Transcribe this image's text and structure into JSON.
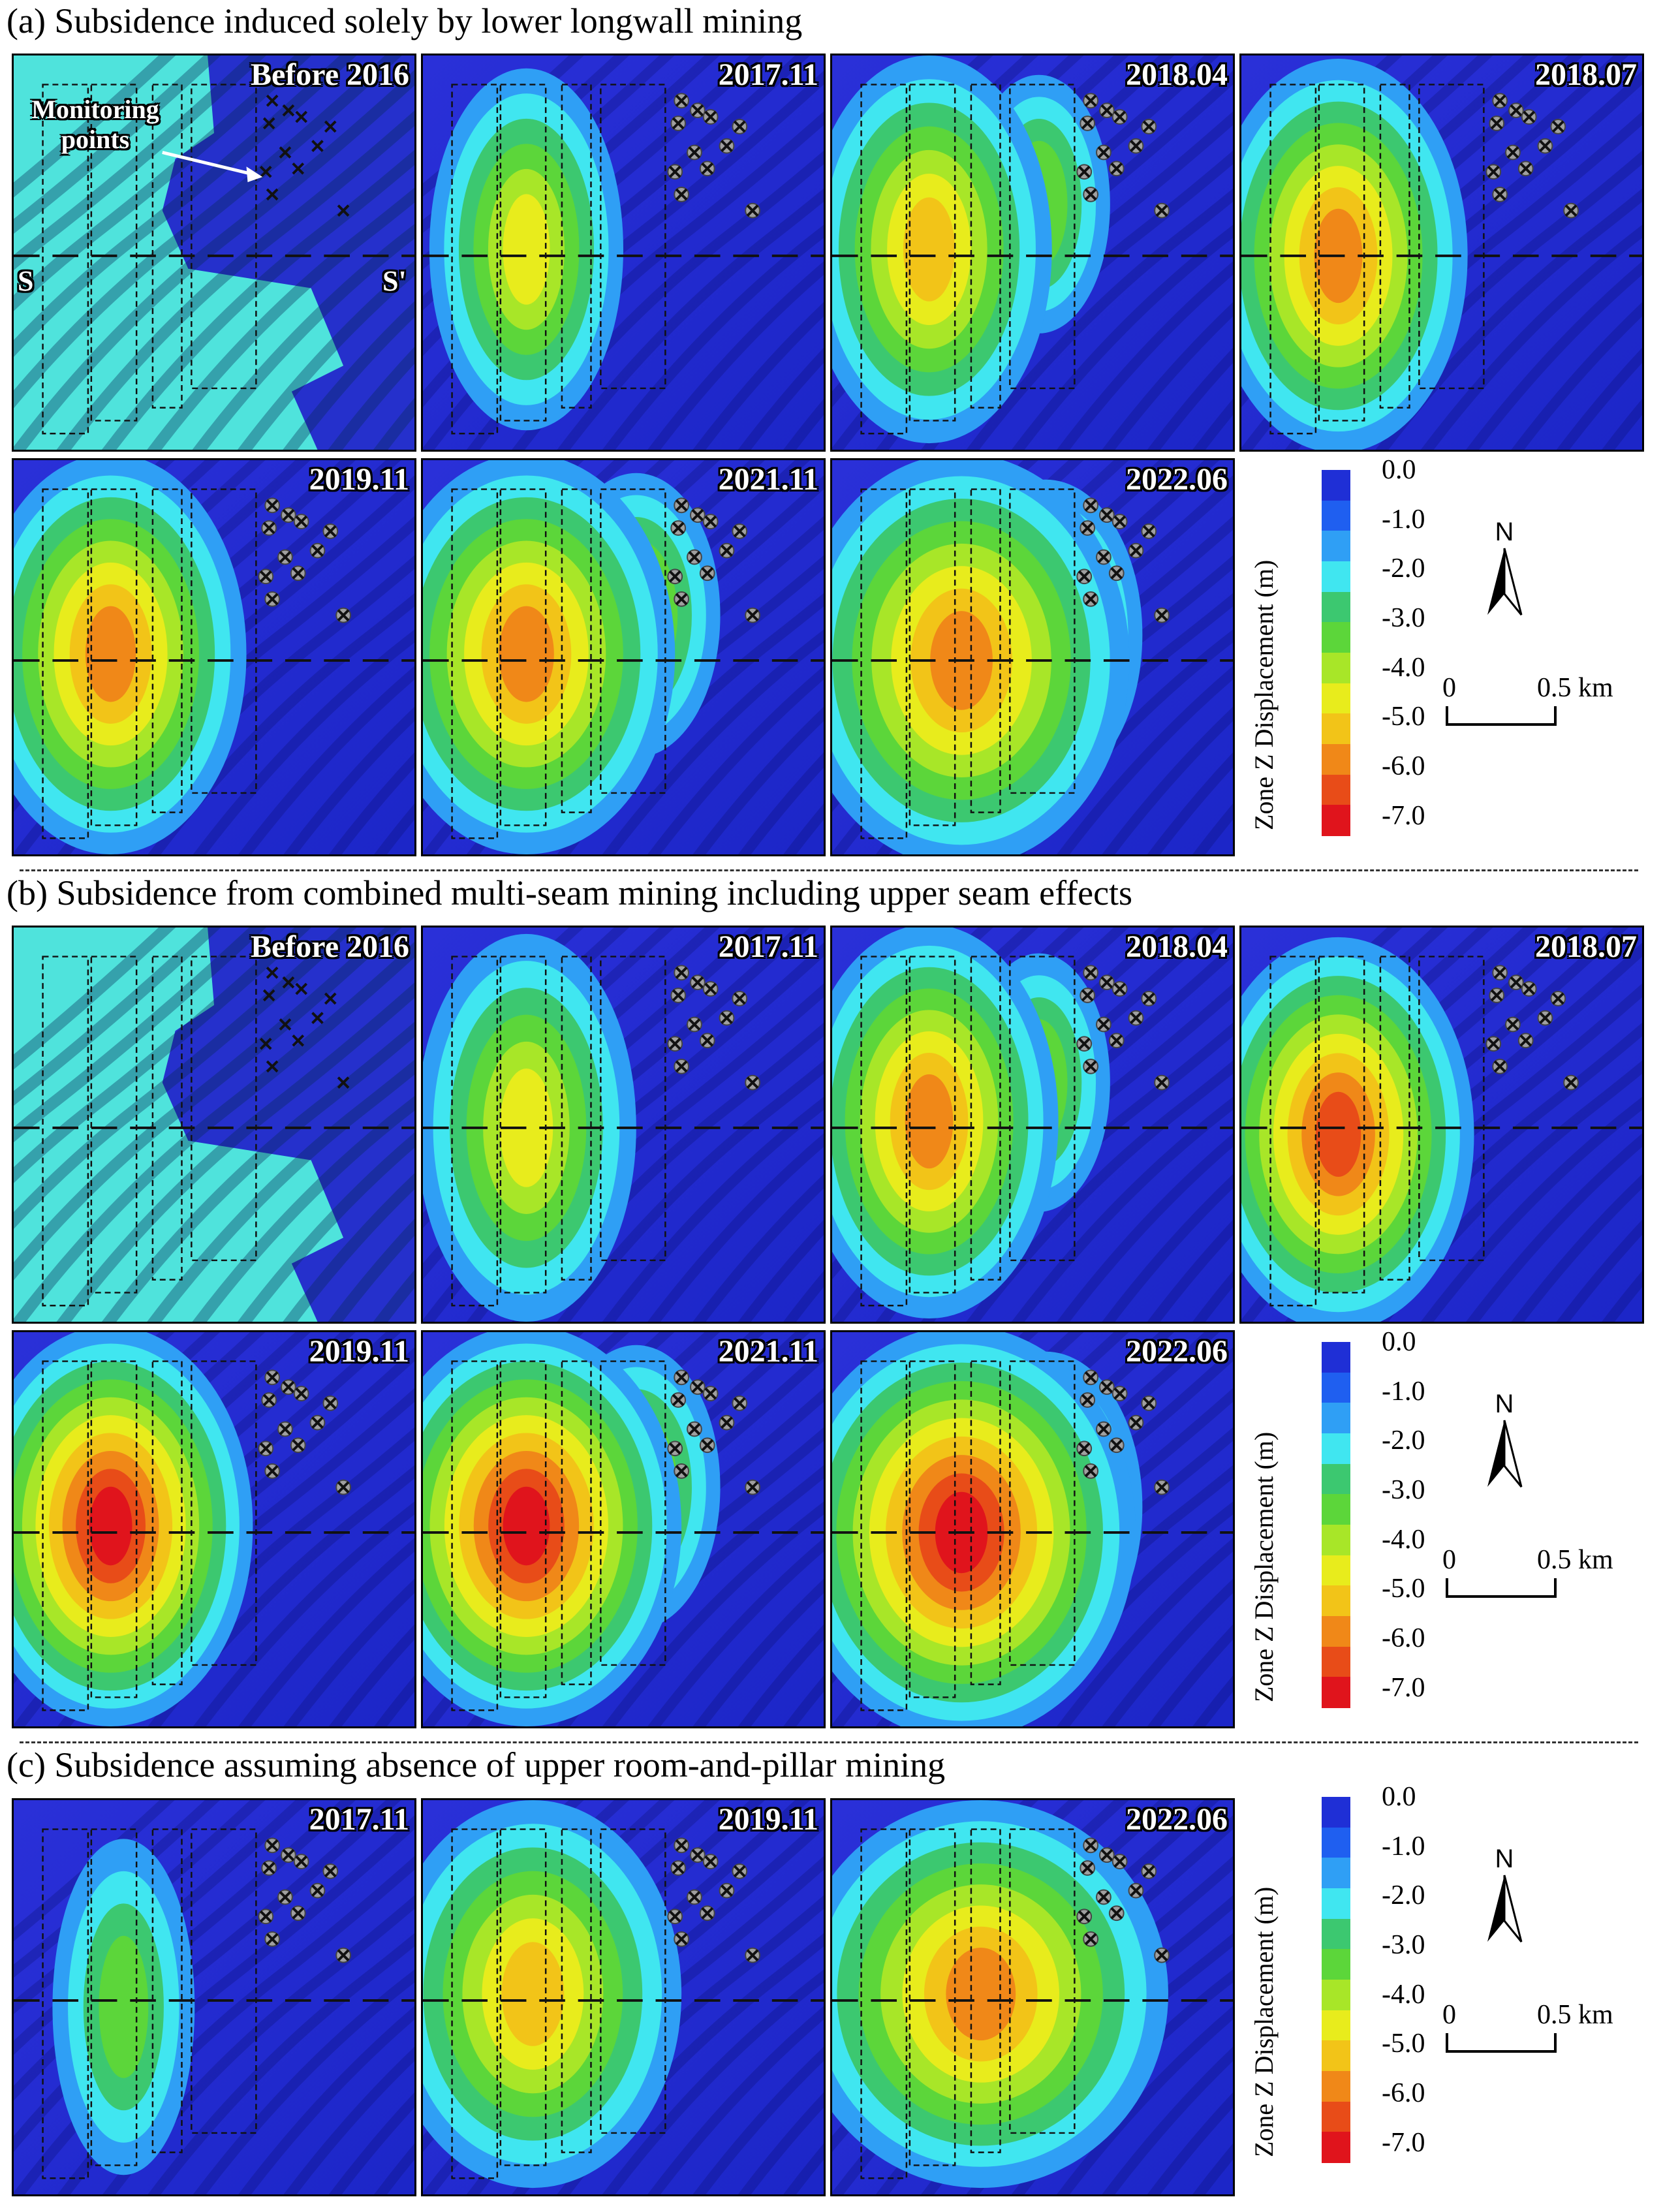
{
  "sections": [
    {
      "id": "a",
      "title": "(a) Subsidence induced solely by lower longwall mining",
      "dates": [
        "Before 2016",
        "2017.11",
        "2018.04",
        "2018.07",
        "2019.11",
        "2021.11",
        "2022.06"
      ]
    },
    {
      "id": "b",
      "title": "(b) Subsidence from combined multi-seam mining including upper seam effects",
      "dates": [
        "Before 2016",
        "2017.11",
        "2018.04",
        "2018.07",
        "2019.11",
        "2021.11",
        "2022.06"
      ]
    },
    {
      "id": "c",
      "title": "(c) Subsidence assuming absence of upper room-and-pillar mining",
      "dates": [
        "2017.11",
        "2019.11",
        "2022.06"
      ]
    }
  ],
  "annotations": {
    "monitoring_points": "Monitoring points",
    "section_start": "S",
    "section_end": "S'"
  },
  "legend": {
    "title": "Zone Z Displacement (m)",
    "ticks": [
      "0.0",
      "-1.0",
      "-2.0",
      "-3.0",
      "-4.0",
      "-5.0",
      "-6.0",
      "-7.0"
    ],
    "colors": [
      "#1f2fd6",
      "#1f5ff0",
      "#2f9ff5",
      "#40e6f0",
      "#3cc870",
      "#5cd63a",
      "#a8e628",
      "#e8ec1c",
      "#f2c418",
      "#f08818",
      "#e84c18",
      "#e0141c"
    ]
  },
  "compass": {
    "north": "N"
  },
  "scale_bar": {
    "start": "0",
    "end": "0.5 km"
  }
}
